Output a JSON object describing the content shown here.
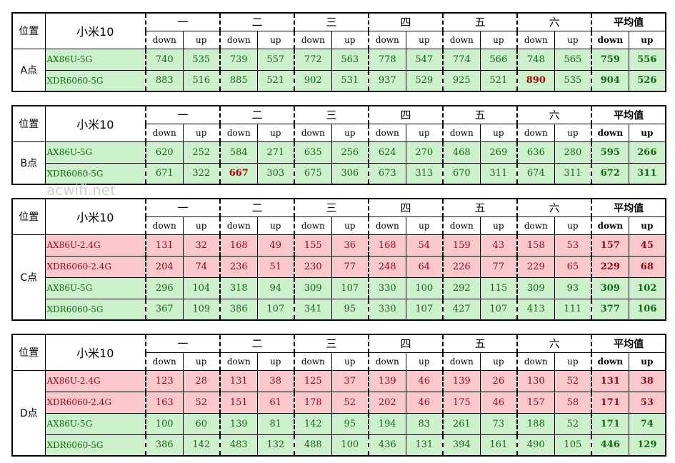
{
  "watermark": "acwifi.net",
  "headers": {
    "position": "位置",
    "phone": "小米10",
    "days": [
      "一",
      "二",
      "三",
      "四",
      "五",
      "六"
    ],
    "average": "平均值",
    "down": "down",
    "up": "up"
  },
  "blocks": [
    {
      "label": "A点",
      "rows": [
        {
          "device": "AX86U-5G",
          "band": "5G",
          "values": [
            "740",
            "535",
            "739",
            "557",
            "772",
            "563",
            "778",
            "547",
            "774",
            "566",
            "748",
            "565"
          ],
          "avg": [
            "759",
            "556"
          ]
        },
        {
          "device": "XDR6060-5G",
          "band": "5G",
          "values": [
            "883",
            "516",
            "885",
            "521",
            "902",
            "531",
            "937",
            "529",
            "925",
            "521",
            "890",
            "535"
          ],
          "avg": [
            "904",
            "526"
          ]
        }
      ]
    },
    {
      "label": "B点",
      "rows": [
        {
          "device": "AX86U-5G",
          "band": "5G",
          "values": [
            "620",
            "252",
            "584",
            "271",
            "635",
            "256",
            "624",
            "270",
            "468",
            "269",
            "636",
            "280"
          ],
          "avg": [
            "595",
            "266"
          ]
        },
        {
          "device": "XDR6060-5G",
          "band": "5G",
          "values": [
            "671",
            "322",
            "667",
            "303",
            "675",
            "306",
            "673",
            "313",
            "670",
            "311",
            "674",
            "311"
          ],
          "avg": [
            "672",
            "311"
          ]
        }
      ]
    },
    {
      "label": "C点",
      "rows": [
        {
          "device": "AX86U-2.4G",
          "band": "2.4G",
          "values": [
            "131",
            "32",
            "168",
            "49",
            "155",
            "36",
            "168",
            "54",
            "159",
            "43",
            "158",
            "53"
          ],
          "avg": [
            "157",
            "45"
          ]
        },
        {
          "device": "XDR6060-2.4G",
          "band": "2.4G",
          "values": [
            "204",
            "74",
            "236",
            "51",
            "230",
            "77",
            "248",
            "64",
            "226",
            "77",
            "229",
            "65"
          ],
          "avg": [
            "229",
            "68"
          ]
        },
        {
          "device": "AX86U-5G",
          "band": "5G",
          "values": [
            "296",
            "104",
            "318",
            "94",
            "309",
            "107",
            "330",
            "100",
            "292",
            "115",
            "309",
            "93"
          ],
          "avg": [
            "309",
            "102"
          ]
        },
        {
          "device": "XDR6060-5G",
          "band": "5G",
          "values": [
            "367",
            "109",
            "386",
            "107",
            "341",
            "95",
            "330",
            "107",
            "427",
            "107",
            "413",
            "111"
          ],
          "avg": [
            "377",
            "106"
          ]
        }
      ]
    },
    {
      "label": "D点",
      "rows": [
        {
          "device": "AX86U-2.4G",
          "band": "2.4G",
          "values": [
            "123",
            "28",
            "131",
            "38",
            "125",
            "37",
            "139",
            "46",
            "139",
            "26",
            "130",
            "52"
          ],
          "avg": [
            "131",
            "38"
          ]
        },
        {
          "device": "XDR6060-2.4G",
          "band": "2.4G",
          "values": [
            "163",
            "52",
            "151",
            "61",
            "178",
            "52",
            "202",
            "46",
            "175",
            "46",
            "157",
            "58"
          ],
          "avg": [
            "171",
            "53"
          ]
        },
        {
          "device": "AX86U-5G",
          "band": "5G",
          "values": [
            "100",
            "60",
            "139",
            "81",
            "142",
            "95",
            "194",
            "83",
            "261",
            "73",
            "188",
            "52"
          ],
          "avg": [
            "171",
            "74"
          ]
        },
        {
          "device": "XDR6060-5G",
          "band": "5G",
          "values": [
            "386",
            "142",
            "483",
            "132",
            "488",
            "100",
            "436",
            "131",
            "394",
            "161",
            "490",
            "105"
          ],
          "avg": [
            "446",
            "129"
          ]
        }
      ]
    }
  ],
  "highlights": [
    {
      "block": 0,
      "row": 1,
      "col": 10
    },
    {
      "block": 1,
      "row": 1,
      "col": 2
    }
  ],
  "colors": {
    "green_fill": "#ccefcc",
    "green_text": "#136b13",
    "red_fill": "#fac8cc",
    "red_text": "#8b0d12",
    "highlight_text": "#b30000"
  }
}
